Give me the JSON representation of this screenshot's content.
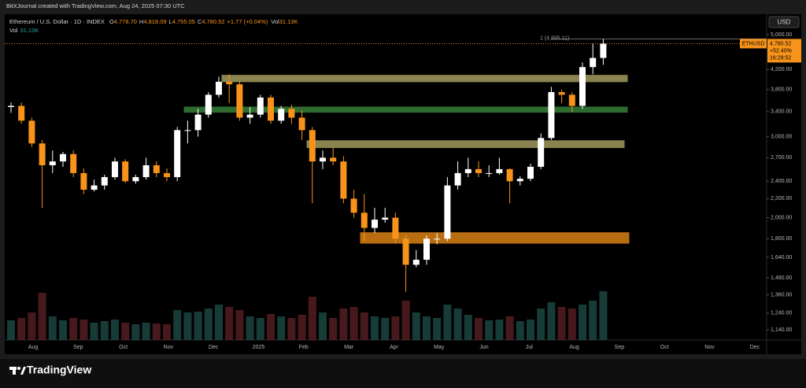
{
  "header": {
    "attribution": "BitXJournal created with TradingView.com, Aug 24, 2025 07:30 UTC"
  },
  "chart_data": {
    "type": "candlestick",
    "title": "Ethereum / U.S. Dollar · 1D · INDEX",
    "ohlc_legend": [
      {
        "key": "O",
        "value": "4,778.70"
      },
      {
        "key": "H",
        "value": "4,818.09"
      },
      {
        "key": "L",
        "value": "4,755.05"
      },
      {
        "key": "C",
        "value": "4,780.52"
      }
    ],
    "change": "+1.77 (+0.04%)",
    "volume_legend": {
      "key": "Vol",
      "value": "31.13K"
    },
    "volume_row": {
      "key": "Vol",
      "value": "31.13K"
    },
    "symbol": "ETHUSD",
    "currency": "USD",
    "last_price_label": "4,780.52",
    "change_label": "+52.40%",
    "countdown": "16:29:52",
    "high_marker": "1 (4,895.11)",
    "open": [
      3480,
      3500,
      3250,
      2900,
      2600,
      2650,
      2750,
      2500,
      2300,
      2350,
      2450,
      2650,
      2400,
      2450,
      2600,
      2500,
      2450,
      3100,
      3100,
      3350,
      3700,
      3950,
      3900,
      3300,
      3350,
      3650,
      3250,
      3450,
      3300,
      3100,
      2650,
      2700,
      2650,
      2200,
      2050,
      1900,
      1980,
      2000,
      1800,
      1580,
      1620,
      1800,
      1800,
      2350,
      2500,
      2550,
      2500,
      2500,
      2550,
      2400,
      2430,
      2580,
      2980,
      3750,
      3700,
      3500,
      4250,
      4450
    ],
    "high": [
      3560,
      3560,
      3300,
      2950,
      2800,
      2780,
      2800,
      2560,
      2420,
      2480,
      2700,
      2680,
      2480,
      2700,
      2650,
      2560,
      3150,
      3250,
      3450,
      3750,
      4050,
      4100,
      3950,
      3480,
      3700,
      3700,
      3500,
      3520,
      3420,
      3150,
      2800,
      2850,
      2720,
      2300,
      2250,
      2100,
      2100,
      2050,
      1830,
      1700,
      1830,
      1850,
      2450,
      2650,
      2700,
      2650,
      2600,
      2700,
      2560,
      2460,
      2620,
      3050,
      3850,
      3800,
      3750,
      4350,
      4790,
      4895.11
    ],
    "low": [
      3380,
      3200,
      2850,
      2100,
      2500,
      2580,
      2450,
      2250,
      2280,
      2300,
      2420,
      2380,
      2370,
      2420,
      2450,
      2400,
      2400,
      2900,
      3000,
      3300,
      3650,
      3550,
      3250,
      3200,
      3300,
      3200,
      3200,
      3200,
      2950,
      2150,
      2550,
      2600,
      2150,
      2000,
      1780,
      1850,
      1950,
      1760,
      1380,
      1560,
      1580,
      1750,
      1780,
      2300,
      2450,
      2450,
      2450,
      2480,
      2150,
      2350,
      2400,
      2550,
      2950,
      3550,
      3400,
      3450,
      4100,
      4300
    ],
    "close": [
      3500,
      3250,
      2900,
      2600,
      2650,
      2750,
      2500,
      2300,
      2350,
      2450,
      2650,
      2400,
      2450,
      2600,
      2500,
      2450,
      3100,
      3100,
      3350,
      3700,
      3950,
      3900,
      3300,
      3350,
      3650,
      3250,
      3450,
      3300,
      3100,
      2650,
      2700,
      2650,
      2200,
      2050,
      1900,
      1980,
      2000,
      1800,
      1580,
      1620,
      1800,
      1800,
      2350,
      2500,
      2550,
      2500,
      2500,
      2550,
      2400,
      2430,
      2580,
      2980,
      3750,
      3700,
      3500,
      4250,
      4450,
      4780.52
    ],
    "volume": [
      25,
      28,
      35,
      60,
      30,
      25,
      28,
      26,
      22,
      24,
      26,
      22,
      20,
      22,
      21,
      20,
      38,
      35,
      36,
      40,
      45,
      42,
      38,
      30,
      28,
      33,
      30,
      28,
      32,
      55,
      35,
      28,
      40,
      42,
      35,
      30,
      28,
      30,
      50,
      35,
      30,
      28,
      45,
      40,
      32,
      28,
      25,
      26,
      30,
      24,
      26,
      40,
      48,
      42,
      40,
      45,
      50,
      62
    ],
    "volume_lim": [
      0,
      100
    ],
    "up_color": "#ffffff",
    "down_color": "#f7931a",
    "ylim": [
      1084,
      5540
    ],
    "log_scale": true,
    "grid": false,
    "yticks": [
      {
        "value": 5000,
        "label": "5,000.00"
      },
      {
        "value": 4200,
        "label": "4,200.00"
      },
      {
        "value": 3800,
        "label": "3,800.00"
      },
      {
        "value": 3400,
        "label": "3,400.00"
      },
      {
        "value": 3000,
        "label": "3,000.00"
      },
      {
        "value": 2700,
        "label": "2,700.00"
      },
      {
        "value": 2400,
        "label": "2,400.00"
      },
      {
        "value": 2200,
        "label": "2,200.00"
      },
      {
        "value": 2000,
        "label": "2,000.00"
      },
      {
        "value": 1800,
        "label": "1,800.00"
      },
      {
        "value": 1640,
        "label": "1,640.00"
      },
      {
        "value": 1480,
        "label": "1,480.00"
      },
      {
        "value": 1360,
        "label": "1,360.00"
      },
      {
        "value": 1240,
        "label": "1,240.00"
      },
      {
        "value": 1140,
        "label": "1,140.00"
      }
    ],
    "time_labels": [
      "Aug",
      "Sep",
      "Oct",
      "Nov",
      "Dec",
      "2025",
      "Feb",
      "Mar",
      "Apr",
      "May",
      "Jun",
      "Jul",
      "Aug",
      "Sep",
      "Oct",
      "Nov",
      "Dec"
    ],
    "zones": [
      {
        "low": 3950,
        "high": 4080,
        "color": "#8a8350"
      },
      {
        "low": 3390,
        "high": 3480,
        "color": "#2e6b2e"
      },
      {
        "low": 2840,
        "high": 2940,
        "color": "#8a8350"
      },
      {
        "low": 1760,
        "high": 1855,
        "color": "#b86e10"
      }
    ]
  },
  "footer": {
    "brand": "TradingView"
  }
}
